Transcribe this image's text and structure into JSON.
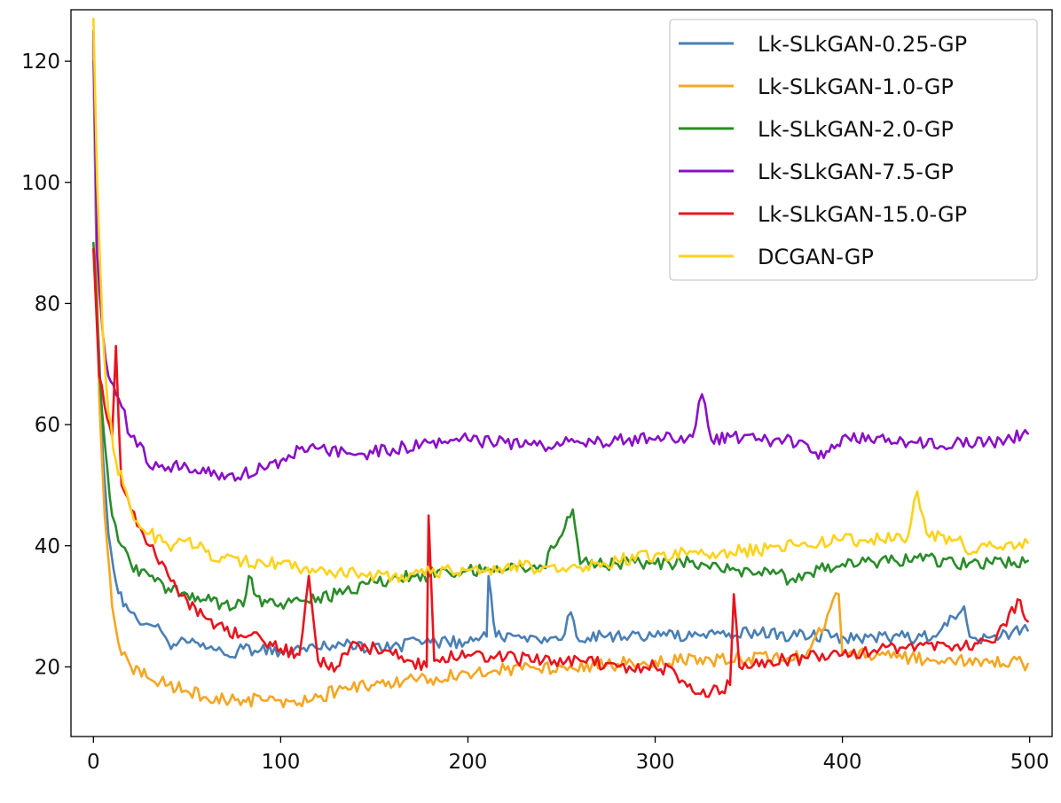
{
  "chart_data": {
    "type": "line",
    "title": "",
    "xlabel": "",
    "ylabel": "",
    "xlim": [
      -12,
      512
    ],
    "ylim": [
      8.5,
      128.5
    ],
    "xticks": [
      0,
      100,
      200,
      300,
      400,
      500
    ],
    "yticks": [
      20,
      40,
      60,
      80,
      100,
      120
    ],
    "grid": false,
    "legend_position": "top-right",
    "series": [
      {
        "name": "Lk-SLkGAN-0.25-GP",
        "color": "#4a7fb5",
        "x": [
          0,
          2,
          5,
          8,
          12,
          16,
          20,
          25,
          30,
          36,
          40,
          50,
          60,
          70,
          80,
          100,
          120,
          137,
          140,
          160,
          180,
          200,
          210,
          211,
          215,
          250,
          255,
          258,
          300,
          350,
          400,
          450,
          465,
          468,
          480,
          499
        ],
        "y": [
          120,
          80,
          55,
          42,
          34,
          30,
          29,
          27,
          27,
          26,
          24,
          24,
          23,
          22,
          23,
          22.5,
          23,
          24,
          23,
          23.5,
          24,
          24,
          25,
          35,
          25,
          24.5,
          29,
          25,
          25,
          25.5,
          25,
          25,
          30,
          25,
          25,
          26
        ]
      },
      {
        "name": "Lk-SLkGAN-1.0-GP",
        "color": "#f5a623",
        "x": [
          0,
          3,
          6,
          10,
          15,
          20,
          30,
          40,
          50,
          60,
          70,
          80,
          90,
          100,
          110,
          120,
          130,
          150,
          180,
          200,
          220,
          250,
          280,
          300,
          330,
          350,
          380,
          398,
          400,
          420,
          450,
          480,
          499
        ],
        "y": [
          123,
          65,
          45,
          30,
          22,
          20,
          18,
          17,
          16,
          15,
          14.5,
          14.5,
          14.5,
          14.5,
          14,
          15,
          16,
          17,
          18,
          19,
          19.5,
          20,
          20.5,
          21,
          21,
          21.5,
          21.5,
          32,
          22,
          22,
          21,
          21,
          20.5
        ]
      },
      {
        "name": "Lk-SLkGAN-2.0-GP",
        "color": "#2a8c2a",
        "x": [
          0,
          1,
          3,
          6,
          10,
          15,
          20,
          30,
          40,
          50,
          60,
          70,
          80,
          83,
          90,
          100,
          110,
          120,
          130,
          150,
          170,
          190,
          200,
          220,
          240,
          256,
          260,
          280,
          300,
          320,
          340,
          360,
          375,
          380,
          400,
          420,
          440,
          460,
          480,
          499
        ],
        "y": [
          90,
          85,
          70,
          57,
          45,
          40,
          37,
          35,
          33,
          32,
          31,
          30.5,
          30,
          35,
          30,
          30.5,
          31,
          31.5,
          32,
          34,
          35,
          35.5,
          36,
          36,
          36.5,
          46,
          37,
          37,
          37,
          37.5,
          36,
          36,
          34,
          35.5,
          37,
          37.5,
          38,
          37,
          37,
          37.5
        ]
      },
      {
        "name": "Lk-SLkGAN-7.5-GP",
        "color": "#8a0fc8",
        "x": [
          0,
          2,
          5,
          8,
          12,
          15,
          20,
          25,
          30,
          35,
          40,
          50,
          60,
          70,
          80,
          90,
          100,
          110,
          120,
          140,
          160,
          180,
          200,
          220,
          240,
          260,
          280,
          300,
          320,
          325,
          330,
          340,
          360,
          380,
          390,
          400,
          420,
          440,
          460,
          480,
          499
        ],
        "y": [
          125,
          88,
          75,
          68,
          65,
          63,
          58,
          57,
          53,
          53,
          53,
          53,
          52,
          51,
          52,
          53,
          54,
          56,
          56,
          55,
          56,
          57,
          57.5,
          57,
          56.5,
          57,
          57.5,
          57.5,
          58,
          65,
          57.5,
          58,
          57.5,
          57,
          54.5,
          58,
          58,
          57,
          57,
          57,
          58.5
        ]
      },
      {
        "name": "Lk-SLkGAN-15.0-GP",
        "color": "#e8141e",
        "x": [
          0,
          3,
          6,
          10,
          12,
          15,
          20,
          25,
          30,
          35,
          40,
          50,
          60,
          70,
          80,
          90,
          100,
          110,
          115,
          120,
          130,
          140,
          160,
          178,
          179,
          182,
          200,
          220,
          240,
          260,
          280,
          300,
          310,
          320,
          330,
          340,
          342,
          345,
          360,
          380,
          400,
          420,
          440,
          460,
          480,
          495,
          499
        ],
        "y": [
          89,
          68,
          63,
          58,
          73,
          50,
          46,
          43,
          40,
          37,
          35,
          31,
          28,
          26,
          25,
          24.5,
          23,
          22,
          35,
          21,
          20,
          24,
          22,
          20,
          45,
          21,
          22,
          21.5,
          21,
          21,
          20,
          20,
          19.5,
          16,
          16,
          17,
          32,
          20,
          21,
          21.5,
          22,
          23,
          23.5,
          23.5,
          24,
          31,
          27.5
        ]
      },
      {
        "name": "DCGAN-GP",
        "color": "#ffd21a",
        "x": [
          0,
          2,
          5,
          8,
          12,
          16,
          20,
          25,
          30,
          40,
          50,
          60,
          70,
          80,
          100,
          120,
          140,
          160,
          180,
          200,
          220,
          240,
          260,
          280,
          300,
          320,
          340,
          360,
          380,
          400,
          420,
          435,
          440,
          445,
          460,
          470,
          480,
          499
        ],
        "y": [
          127,
          100,
          75,
          62,
          54,
          50,
          46,
          43,
          42,
          40,
          41,
          39,
          38,
          37.5,
          37,
          36,
          35.5,
          35,
          35.5,
          36,
          36.5,
          36.5,
          36.5,
          37.5,
          38.5,
          39,
          39,
          39.5,
          40.5,
          41,
          41,
          41.5,
          49,
          42,
          41,
          39,
          40,
          40.5
        ]
      }
    ]
  }
}
